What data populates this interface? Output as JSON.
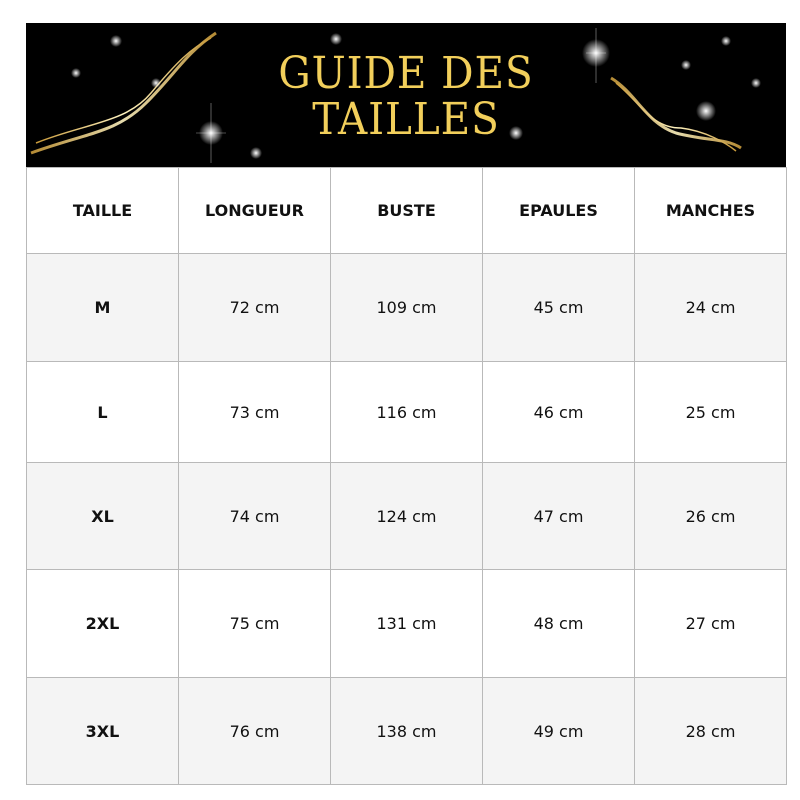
{
  "banner": {
    "title_line1": "GUIDE DES",
    "title_line2": "TAILLES",
    "title_color": "#f2cf5b",
    "background": "#000000"
  },
  "table": {
    "headers": [
      "TAILLE",
      "LONGUEUR",
      "BUSTE",
      "EPAULES",
      "MANCHES"
    ],
    "rows": [
      [
        "M",
        "72 cm",
        "109 cm",
        "45 cm",
        "24 cm"
      ],
      [
        "L",
        "73 cm",
        "116 cm",
        "46 cm",
        "25 cm"
      ],
      [
        "XL",
        "74 cm",
        "124 cm",
        "47 cm",
        "26 cm"
      ],
      [
        "2XL",
        "75 cm",
        "131 cm",
        "48 cm",
        "27 cm"
      ],
      [
        "3XL",
        "76 cm",
        "138 cm",
        "49 cm",
        "28 cm"
      ]
    ]
  }
}
